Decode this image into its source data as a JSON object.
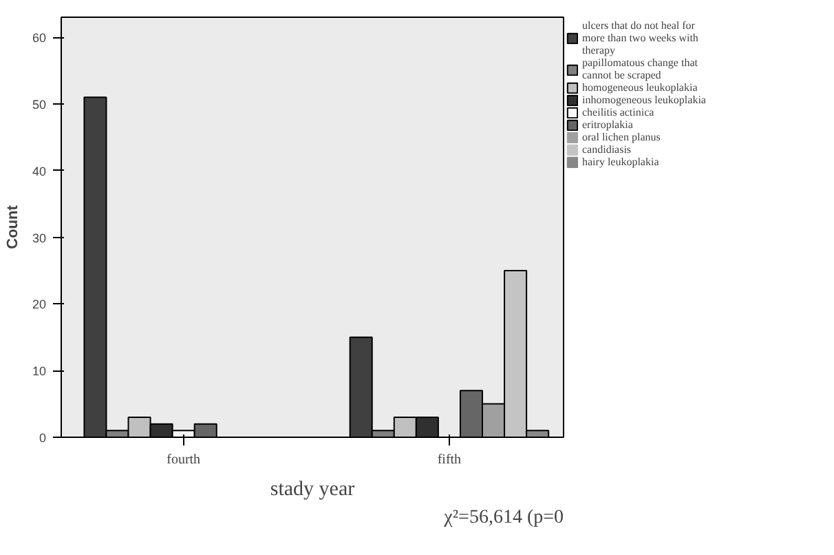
{
  "chart_data": {
    "type": "bar",
    "xlabel": "stady year",
    "ylabel": "Count",
    "categories": [
      "fourth",
      "fifth"
    ],
    "series": [
      {
        "name": "ulcers that do not heal for more than two weeks with therapy",
        "color": "#404040",
        "values": [
          51,
          15
        ]
      },
      {
        "name": "papillomatous change that cannot be scraped",
        "color": "#808080",
        "values": [
          1,
          1
        ]
      },
      {
        "name": "homogeneous leukoplakia",
        "color": "#c0c0c0",
        "values": [
          3,
          3
        ]
      },
      {
        "name": "inhomogeneous leukoplakia",
        "color": "#303030",
        "values": [
          2,
          3
        ]
      },
      {
        "name": "cheilitis actinica",
        "color": "#f8f8f8",
        "values": [
          1,
          0
        ]
      },
      {
        "name": "eritroplakia",
        "color": "#666666",
        "values": [
          2,
          7
        ]
      },
      {
        "name": "oral lichen planus",
        "color": "#a0a0a0",
        "values": [
          0,
          5
        ]
      },
      {
        "name": "candidiasis",
        "color": "#c4c4c4",
        "values": [
          0,
          25
        ]
      },
      {
        "name": "hairy leukoplakia",
        "color": "#888888",
        "values": [
          0,
          1
        ]
      }
    ],
    "ylim": [
      0,
      63
    ],
    "yticks": [
      0,
      10,
      20,
      30,
      40,
      50,
      60
    ],
    "legend": "right",
    "annotations": [
      "χ²=56,614 (p=0"
    ]
  }
}
